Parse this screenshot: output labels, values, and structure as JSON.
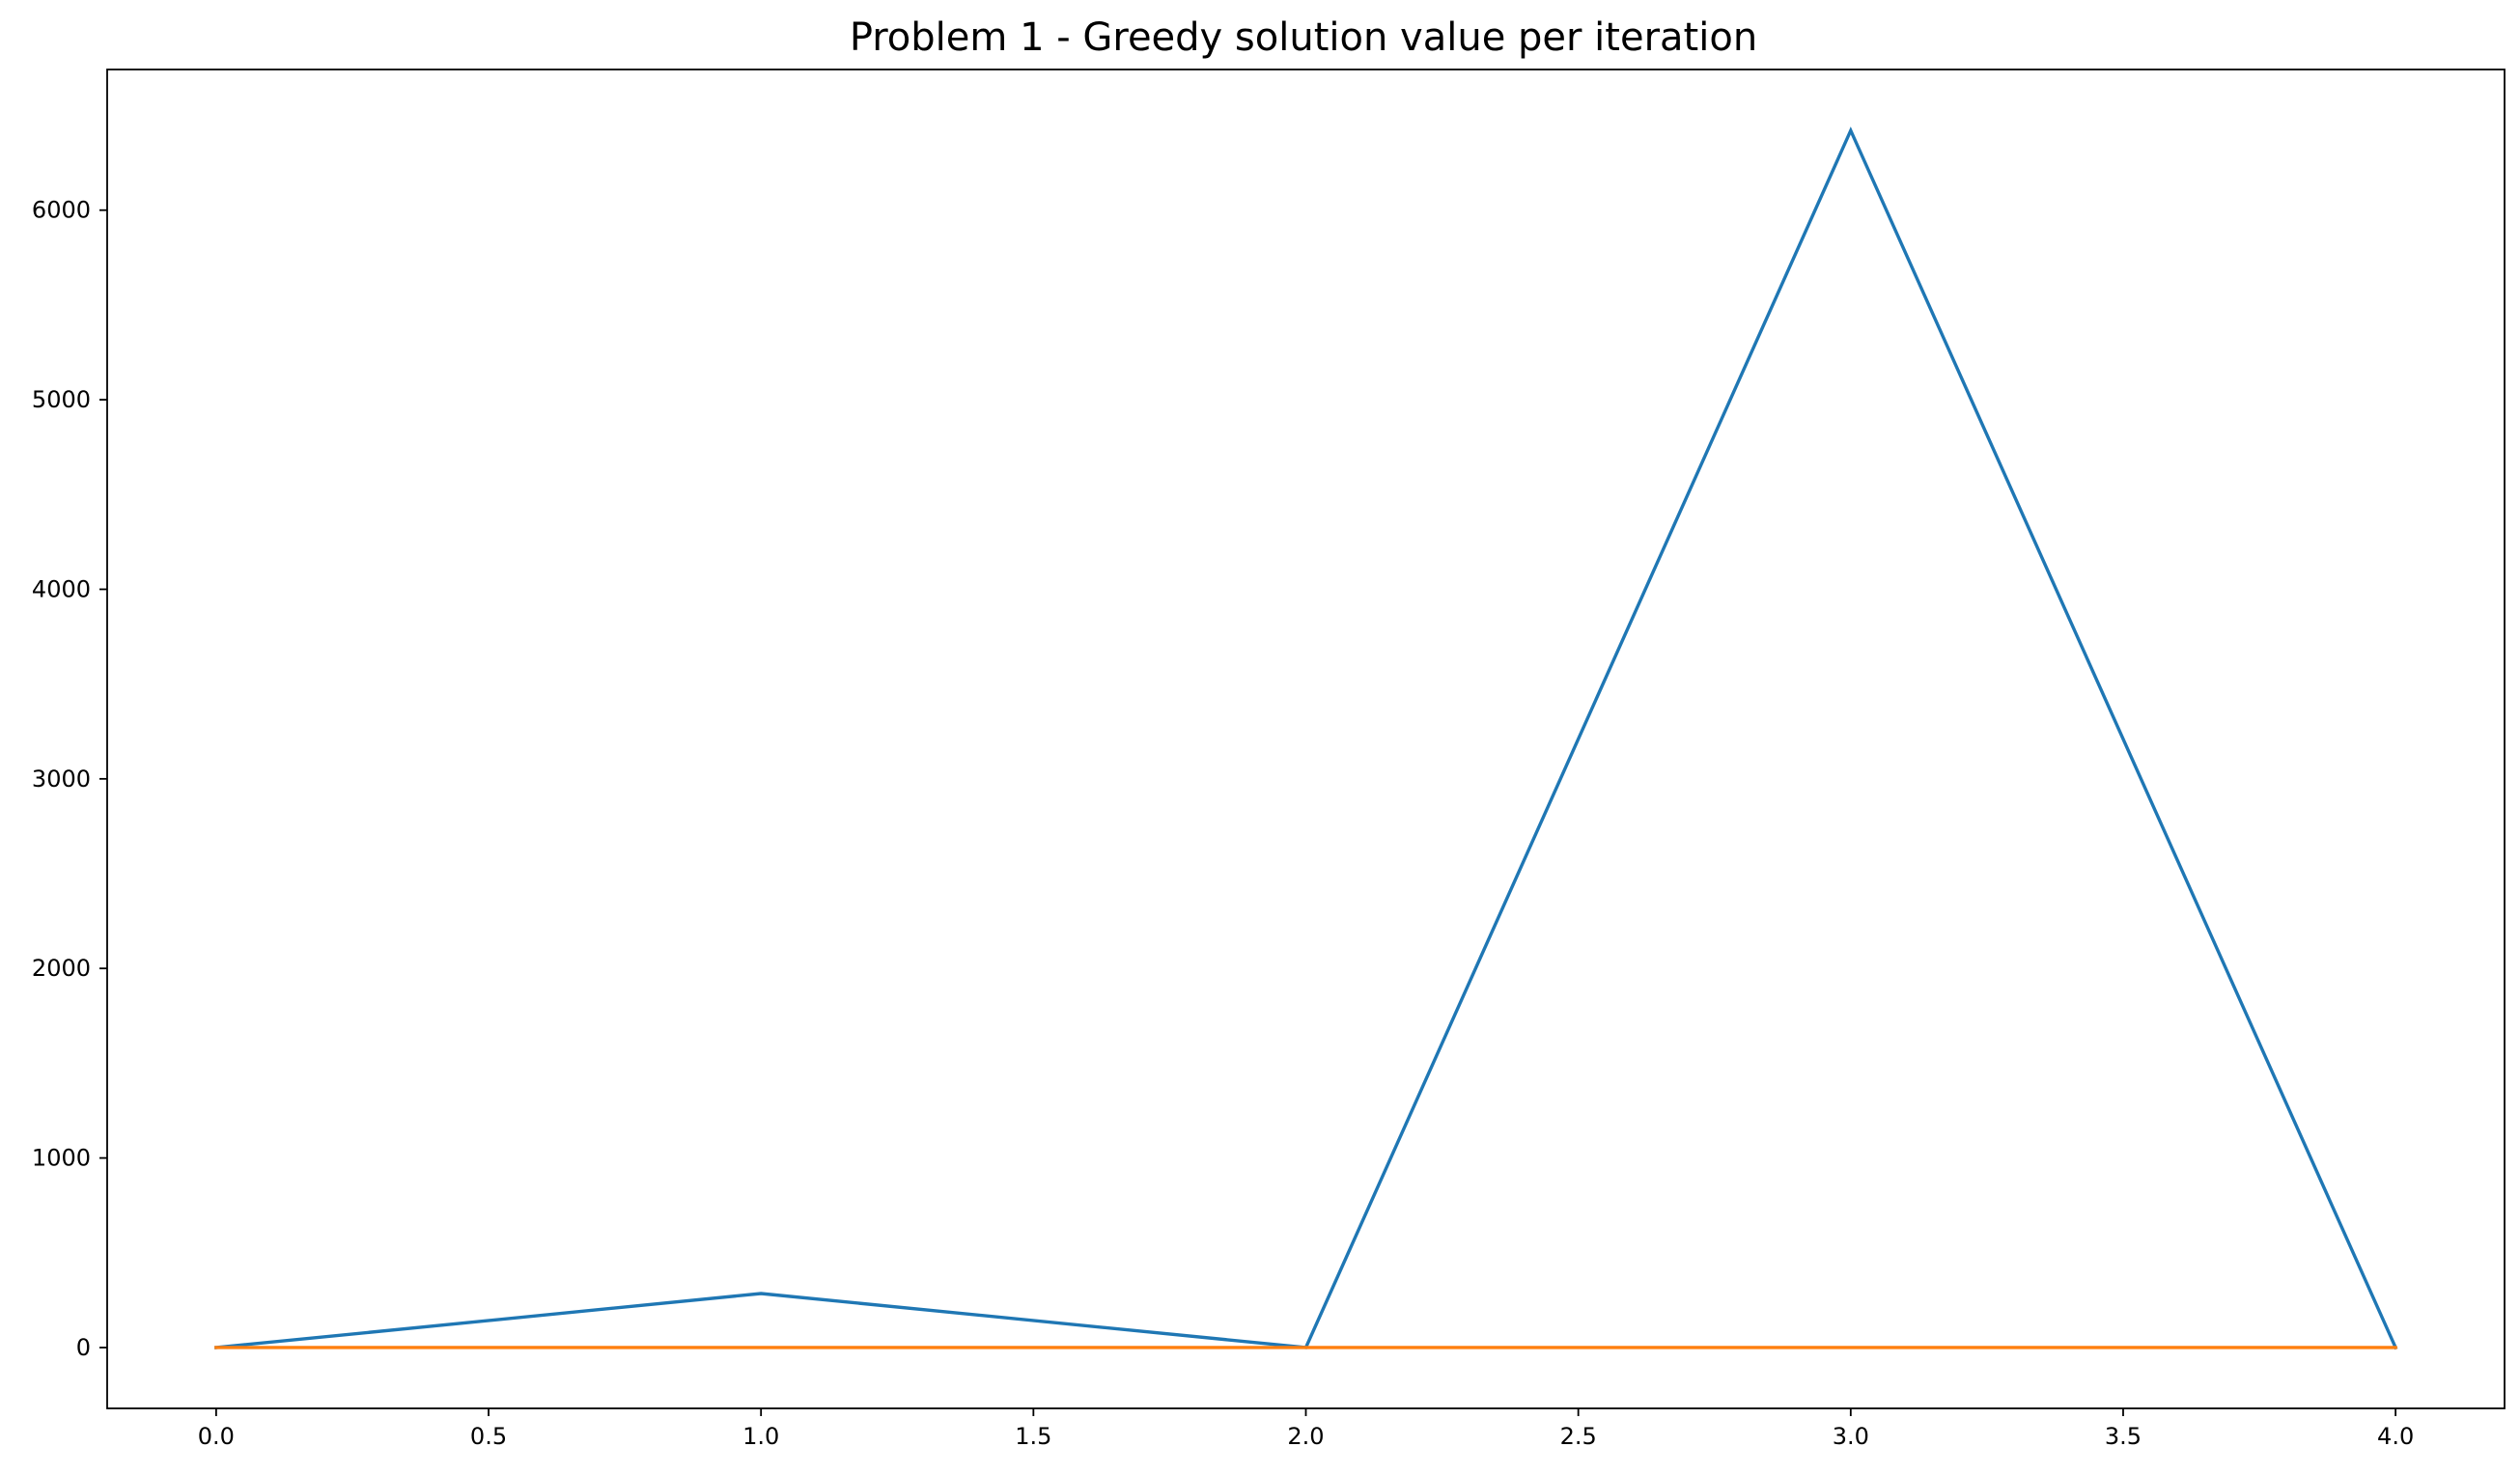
{
  "chart_data": {
    "type": "line",
    "title": "Problem 1 - Greedy solution value per iteration",
    "xlabel": "",
    "ylabel": "",
    "x": [
      0,
      1,
      2,
      3,
      4
    ],
    "xlim": [
      -0.2,
      4.2
    ],
    "ylim": [
      -321,
      6742
    ],
    "xticks": [
      0.0,
      0.5,
      1.0,
      1.5,
      2.0,
      2.5,
      3.0,
      3.5,
      4.0
    ],
    "xtick_labels": [
      "0.0",
      "0.5",
      "1.0",
      "1.5",
      "2.0",
      "2.5",
      "3.0",
      "3.5",
      "4.0"
    ],
    "yticks": [
      0,
      1000,
      2000,
      3000,
      4000,
      5000,
      6000
    ],
    "ytick_labels": [
      "0",
      "1000",
      "2000",
      "3000",
      "4000",
      "5000",
      "6000"
    ],
    "grid": false,
    "series": [
      {
        "values": [
          0,
          285,
          0,
          6420,
          0
        ],
        "color": "#1f77b4"
      },
      {
        "values": [
          0,
          0,
          0,
          0,
          0
        ],
        "color": "#ff7f0e"
      }
    ]
  }
}
